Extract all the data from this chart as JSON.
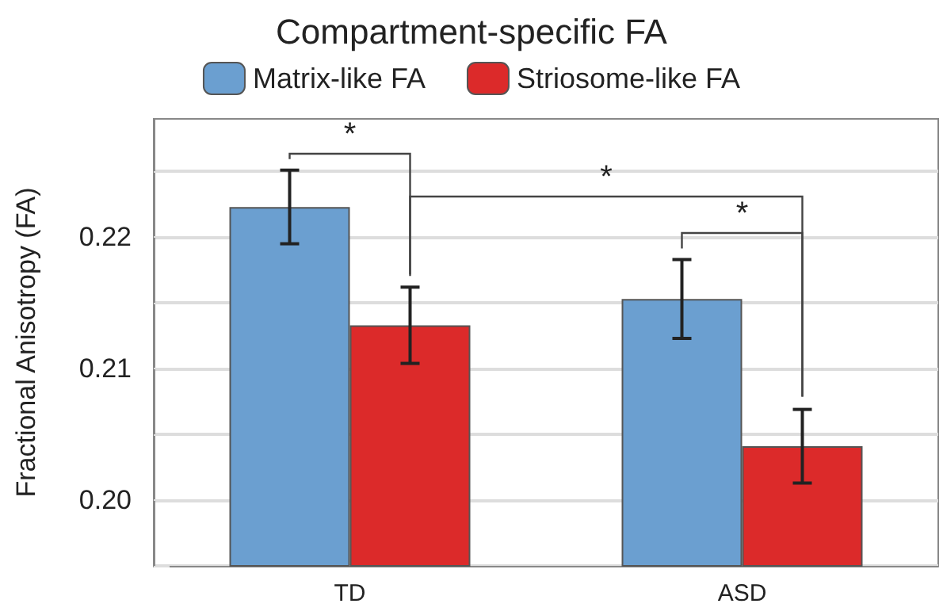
{
  "chart_data": {
    "type": "bar",
    "title": "Compartment-specific FA",
    "ylabel": "Fractional Anisotropy (FA)",
    "categories": [
      "TD",
      "ASD"
    ],
    "series": [
      {
        "name": "Matrix-like FA",
        "color": "#6b9fd0",
        "values": [
          0.2223,
          0.2153
        ],
        "errors": [
          0.0028,
          0.003
        ]
      },
      {
        "name": "Striosome-like FA",
        "color": "#dc2a2a",
        "values": [
          0.2133,
          0.2041
        ],
        "errors": [
          0.0029,
          0.0028
        ]
      }
    ],
    "ylim": [
      0.195,
      0.229
    ],
    "yticks": [
      {
        "value": 0.195,
        "label": null
      },
      {
        "value": 0.2,
        "label": "0.20"
      },
      {
        "value": 0.205,
        "label": null
      },
      {
        "value": 0.21,
        "label": "0.21"
      },
      {
        "value": 0.215,
        "label": null
      },
      {
        "value": 0.22,
        "label": "0.22"
      },
      {
        "value": 0.225,
        "label": null
      }
    ],
    "grid": "y",
    "legend": "top",
    "annotations": [
      "*",
      "*",
      "*"
    ]
  }
}
